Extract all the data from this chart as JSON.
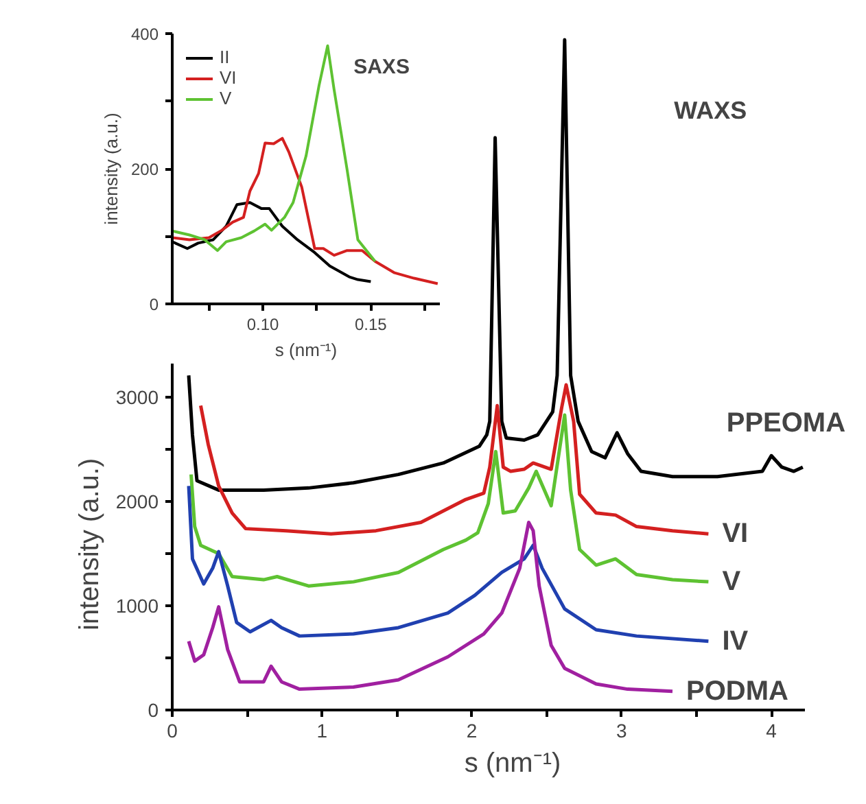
{
  "chart_data": [
    {
      "type": "line",
      "xlabel": "s (nm⁻¹)",
      "ylabel": "intensity (a.u.)",
      "annotations": [
        "WAXS"
      ],
      "xlim": [
        0,
        4.22
      ],
      "ylim": [
        0,
        6450
      ],
      "xticks": [
        0,
        {
          "value": 0.5,
          "label": null
        },
        1,
        {
          "value": 1.5,
          "label": null
        },
        2,
        {
          "value": 2.5,
          "label": null
        },
        3,
        {
          "value": 3.5,
          "label": null
        },
        4
      ],
      "yticks": [
        0,
        {
          "value": 500,
          "label": null
        },
        1000,
        {
          "value": 1500,
          "label": null
        },
        2000,
        {
          "value": 2500,
          "label": null
        },
        3000
      ],
      "grid": false,
      "series": [
        {
          "name": "PPEOMA",
          "color": "#000000",
          "x": [
            0.11,
            0.135,
            0.165,
            0.31,
            0.61,
            0.91,
            1.21,
            1.51,
            1.81,
            2.05,
            2.1,
            2.12,
            2.156,
            2.2,
            2.23,
            2.35,
            2.44,
            2.54,
            2.57,
            2.62,
            2.66,
            2.71,
            2.8,
            2.89,
            2.97,
            3.04,
            3.13,
            3.34,
            3.64,
            3.94,
            4.0,
            4.07,
            4.15,
            4.21
          ],
          "values": [
            3210,
            2640,
            2200,
            2110,
            2110,
            2130,
            2180,
            2260,
            2370,
            2530,
            2640,
            2770,
            5490,
            2770,
            2610,
            2590,
            2640,
            2860,
            3210,
            6430,
            3210,
            2770,
            2480,
            2420,
            2660,
            2460,
            2290,
            2240,
            2240,
            2290,
            2440,
            2330,
            2290,
            2330
          ]
        },
        {
          "name": "VI",
          "color": "#d42020",
          "x": [
            0.19,
            0.24,
            0.31,
            0.4,
            0.49,
            0.76,
            1.06,
            1.36,
            1.66,
            1.96,
            2.08,
            2.12,
            2.17,
            2.21,
            2.26,
            2.35,
            2.41,
            2.53,
            2.6,
            2.63,
            2.68,
            2.72,
            2.83,
            2.96,
            3.1,
            3.34,
            3.58
          ],
          "values": [
            2920,
            2550,
            2150,
            1890,
            1740,
            1720,
            1690,
            1720,
            1800,
            2020,
            2080,
            2330,
            2920,
            2330,
            2290,
            2310,
            2370,
            2310,
            2900,
            3120,
            2770,
            2070,
            1890,
            1870,
            1760,
            1720,
            1690
          ]
        },
        {
          "name": "V",
          "color": "#5ec232",
          "x": [
            0.126,
            0.15,
            0.19,
            0.31,
            0.4,
            0.61,
            0.7,
            0.91,
            1.21,
            1.51,
            1.81,
            1.96,
            2.04,
            2.11,
            2.16,
            2.21,
            2.29,
            2.38,
            2.43,
            2.53,
            2.62,
            2.66,
            2.72,
            2.83,
            2.96,
            3.1,
            3.34,
            3.58
          ],
          "values": [
            2260,
            1760,
            1580,
            1500,
            1280,
            1250,
            1280,
            1190,
            1230,
            1320,
            1540,
            1630,
            1700,
            1980,
            2480,
            1890,
            1910,
            2130,
            2290,
            1960,
            2830,
            2110,
            1540,
            1390,
            1450,
            1300,
            1250,
            1230
          ]
        },
        {
          "name": "IV",
          "color": "#2040b0",
          "x": [
            0.11,
            0.135,
            0.21,
            0.27,
            0.31,
            0.37,
            0.43,
            0.52,
            0.66,
            0.73,
            0.85,
            1.21,
            1.51,
            1.84,
            2.02,
            2.2,
            2.35,
            2.41,
            2.47,
            2.62,
            2.83,
            3.1,
            3.58
          ],
          "values": [
            2150,
            1450,
            1210,
            1360,
            1520,
            1190,
            840,
            750,
            860,
            790,
            710,
            730,
            790,
            930,
            1100,
            1320,
            1450,
            1580,
            1360,
            970,
            770,
            710,
            660
          ]
        },
        {
          "name": "PODMA",
          "color": "#a020a0",
          "x": [
            0.11,
            0.15,
            0.21,
            0.27,
            0.31,
            0.37,
            0.45,
            0.61,
            0.66,
            0.73,
            0.85,
            1.21,
            1.51,
            1.84,
            2.08,
            2.2,
            2.32,
            2.38,
            2.41,
            2.45,
            2.53,
            2.62,
            2.83,
            3.04,
            3.34
          ],
          "values": [
            660,
            470,
            530,
            790,
            990,
            580,
            270,
            270,
            420,
            270,
            200,
            220,
            290,
            510,
            730,
            930,
            1360,
            1800,
            1720,
            1190,
            620,
            400,
            250,
            200,
            180
          ]
        }
      ]
    },
    {
      "type": "line",
      "xlabel": "s (nm⁻¹)",
      "ylabel": "intensity (a.u.)",
      "annotations": [
        "SAXS"
      ],
      "xlim": [
        0.058,
        0.182
      ],
      "ylim": [
        0,
        400
      ],
      "xticks": [
        {
          "value": 0.075,
          "label": null
        },
        {
          "value": 0.1,
          "label": "0.10"
        },
        {
          "value": 0.125,
          "label": null
        },
        0.15,
        {
          "value": 0.175,
          "label": null
        }
      ],
      "yticks": [
        0,
        {
          "value": 100,
          "label": null
        },
        200,
        {
          "value": 300,
          "label": null
        },
        400
      ],
      "grid": false,
      "legend": "top left",
      "series": [
        {
          "name": "II",
          "color": "#000000",
          "x": [
            0.058,
            0.065,
            0.07,
            0.077,
            0.083,
            0.088,
            0.094,
            0.0994,
            0.103,
            0.109,
            0.116,
            0.124,
            0.131,
            0.14,
            0.144,
            0.15
          ],
          "values": [
            92,
            82,
            90,
            95,
            115,
            147,
            150,
            141,
            141,
            115,
            95,
            76,
            56,
            40,
            36,
            33
          ]
        },
        {
          "name": "VI",
          "color": "#d42020",
          "x": [
            0.058,
            0.066,
            0.075,
            0.081,
            0.086,
            0.091,
            0.094,
            0.098,
            0.101,
            0.105,
            0.109,
            0.112,
            0.118,
            0.124,
            0.128,
            0.133,
            0.139,
            0.146,
            0.152,
            0.161,
            0.17,
            0.181
          ],
          "values": [
            98,
            95,
            98,
            109,
            121,
            128,
            167,
            193,
            238,
            237,
            245,
            225,
            173,
            82,
            82,
            72,
            79,
            79,
            63,
            46,
            38,
            30
          ]
        },
        {
          "name": "V",
          "color": "#5ec232",
          "x": [
            0.058,
            0.066,
            0.073,
            0.079,
            0.083,
            0.09,
            0.096,
            0.101,
            0.104,
            0.11,
            0.114,
            0.12,
            0.126,
            0.13,
            0.133,
            0.139,
            0.144,
            0.152
          ],
          "values": [
            108,
            102,
            95,
            79,
            92,
            98,
            108,
            118,
            109,
            128,
            150,
            219,
            323,
            382,
            317,
            199,
            95,
            63
          ]
        }
      ]
    }
  ]
}
